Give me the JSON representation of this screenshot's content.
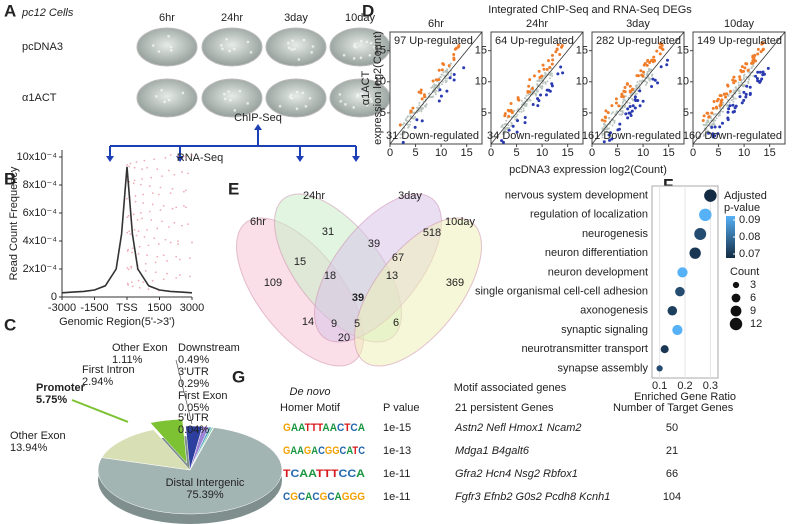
{
  "panel_labels": [
    "A",
    "B",
    "C",
    "D",
    "E",
    "F",
    "G"
  ],
  "cells": {
    "title": "pc12 Cells",
    "times": [
      "6hr",
      "24hr",
      "3day",
      "10day"
    ],
    "rows": [
      "pcDNA3",
      "α1ACT"
    ],
    "chip": "ChIP-Seq",
    "rna": "RNA-Seq"
  },
  "deg": {
    "title": "Integrated ChIP-Seq and RNA-Seq DEGs",
    "ylabel_1": "α1ACT",
    "ylabel_2": "expression log2(Count)",
    "xlabel": "pcDNA3 expression log2(Count)",
    "lim": [
      0,
      18
    ],
    "xticks": [
      0,
      5,
      10,
      15
    ],
    "yticks": [
      5,
      10,
      15
    ],
    "panels": [
      {
        "time": "6hr",
        "up": "97 Up-regulated",
        "down": "31 Down-regulated"
      },
      {
        "time": "24hr",
        "up": "64 Up-regulated",
        "down": "34 Down-regulated"
      },
      {
        "time": "3day",
        "up": "282 Up-regulated",
        "down": "161 Down-regulated"
      },
      {
        "time": "10day",
        "up": "149 Up-regulated",
        "down": "160 Down-regulated"
      }
    ]
  },
  "venn": {
    "sets": [
      "6hr",
      "24hr",
      "3day",
      "10day"
    ],
    "counts": [
      109,
      31,
      518,
      369,
      15,
      39,
      67,
      18,
      13,
      39,
      14,
      9,
      5,
      6,
      20
    ]
  },
  "motif": {
    "heading_1": "De novo",
    "heading_2": "Homer Motif",
    "title": "Motif associated genes",
    "columns": [
      "P value",
      "21 persistent Genes",
      "Number of Target Genes"
    ],
    "rows": [
      {
        "logo": "GAATTTAACTCA",
        "p": "1e-15",
        "genes": "Astn2 Nefl Hmox1 Ncam2",
        "targets": 50
      },
      {
        "logo": "GAAGACGGCATC",
        "p": "1e-13",
        "genes": "Mdga1 B4galt6",
        "targets": 21
      },
      {
        "logo": "TCAATTTCCA",
        "p": "1e-11",
        "genes": "Gfra2 Hcn4 Nsg2 Rbfox1",
        "targets": 66
      },
      {
        "logo": "CGCACGCAGGG",
        "p": "1e-11",
        "genes": "Fgfr3 Efnb2 G0s2 Pcdh8 Kcnh1",
        "targets": 104
      }
    ]
  },
  "chart_data": [
    {
      "type": "line",
      "ylabel": "Read Count Frequency",
      "xlabel": "Genomic Region(5'->3')",
      "x": [
        -3000,
        -2500,
        -2000,
        -1500,
        -1000,
        -500,
        -250,
        0,
        250,
        500,
        1000,
        1500,
        2000,
        2500,
        3000
      ],
      "values": [
        3e-05,
        3.5e-05,
        4e-05,
        5e-05,
        8e-05,
        0.0002,
        0.00045,
        0.00093,
        0.00045,
        0.0002,
        8e-05,
        5e-05,
        4e-05,
        3.5e-05,
        3e-05
      ],
      "color": "#333333",
      "xlim": [
        -3000,
        3000
      ],
      "ylim": [
        0,
        0.00105
      ],
      "xticks": [
        -3000,
        -1500,
        {
          "value": 0,
          "label": "TSS"
        },
        1500,
        3000
      ],
      "yticks": [
        {
          "value": 0,
          "label": "0"
        },
        {
          "value": 0.0002,
          "label": "2x10⁻⁴"
        },
        {
          "value": 0.0004,
          "label": "4x10⁻⁴"
        },
        {
          "value": 0.0006,
          "label": "6x10⁻⁴"
        },
        {
          "value": 0.0008,
          "label": "8x10⁻⁴"
        },
        {
          "value": 0.001,
          "label": "10x10⁻⁴"
        }
      ]
    },
    {
      "type": "pie",
      "categories": [
        "Distal Intergenic",
        "Other Exon",
        "Promoter",
        "First Intron",
        "Other Exon",
        "Downstream",
        "3'UTR",
        "First Exon",
        "5'UTR"
      ],
      "values": [
        75.39,
        13.94,
        5.75,
        2.94,
        1.11,
        0.49,
        0.29,
        0.05,
        0.04
      ],
      "value_labels": [
        "75.39%",
        "13.94%",
        "5.75%",
        "2.94%",
        "1.11%",
        "0.49%",
        "0.29%",
        "0.05%",
        "0.04%"
      ],
      "colors": [
        "#a3b5b3",
        "#d9dfb5",
        "#7cc232",
        "#2c3f9e",
        "#9c82d4",
        "#5aa7c9",
        "#6fcf97",
        "#e0c25a",
        "#c77aa8"
      ]
    },
    {
      "type": "dot",
      "categories": [
        "nervous system development",
        "regulation of localization",
        "neurogenesis",
        "neuron differentiation",
        "neuron development",
        "single organismal cell-cell adhesion",
        "axonogenesis",
        "synaptic signaling",
        "neurotransmitter transport",
        "synapse assembly"
      ],
      "values": [
        0.3,
        0.28,
        0.26,
        0.24,
        0.19,
        0.18,
        0.15,
        0.17,
        0.12,
        0.1
      ],
      "counts": [
        12,
        12,
        11,
        10,
        8,
        7,
        7,
        8,
        5,
        3
      ],
      "pvalues": [
        0.07,
        0.09,
        0.075,
        0.072,
        0.09,
        0.075,
        0.073,
        0.09,
        0.072,
        0.075
      ],
      "colors": [
        "#132b43",
        "#56b1f7"
      ],
      "xlabel": "Enriched Gene Ratio",
      "xlim": [
        0.07,
        0.33
      ],
      "xticks": [
        0.1,
        0.2,
        0.3
      ],
      "color_title": [
        "Adjusted",
        "p-value"
      ],
      "color_ticks": [
        0.09,
        0.08,
        0.07
      ],
      "size_title": "Count",
      "size_ticks": [
        3,
        6,
        9,
        12
      ]
    }
  ]
}
